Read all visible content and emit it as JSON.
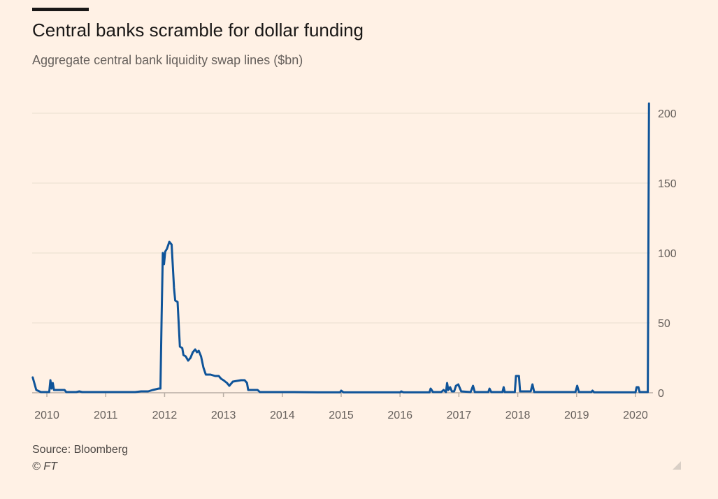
{
  "header": {
    "title": "Central banks scramble for dollar funding",
    "subtitle": "Aggregate central bank liquidity swap lines ($bn)"
  },
  "footer": {
    "source": "Source: Bloomberg",
    "credit": "© FT"
  },
  "colors": {
    "background": "#fff1e5",
    "line": "#0f5499",
    "grid": "#e9decf",
    "text": "#66605c"
  },
  "chart_data": {
    "type": "line",
    "title": "Central banks scramble for dollar funding",
    "subtitle": "Aggregate central bank liquidity swap lines ($bn)",
    "xlabel": "",
    "ylabel": "$bn",
    "xlim": [
      2009.75,
      2020.25
    ],
    "ylim": [
      0,
      200
    ],
    "yticks": [
      0,
      50,
      100,
      150,
      200
    ],
    "xticks": [
      2010,
      2011,
      2012,
      2013,
      2014,
      2015,
      2016,
      2017,
      2018,
      2019,
      2020
    ],
    "y_axis_side": "right",
    "grid": true,
    "series": [
      {
        "name": "Liquidity swap lines",
        "points": [
          [
            2009.76,
            11
          ],
          [
            2009.82,
            2
          ],
          [
            2009.9,
            0.5
          ],
          [
            2010.0,
            0.5
          ],
          [
            2010.04,
            0.5
          ],
          [
            2010.06,
            9
          ],
          [
            2010.08,
            3
          ],
          [
            2010.1,
            7
          ],
          [
            2010.12,
            2
          ],
          [
            2010.3,
            2
          ],
          [
            2010.33,
            0.5
          ],
          [
            2010.5,
            0.5
          ],
          [
            2010.55,
            1
          ],
          [
            2010.6,
            0.5
          ],
          [
            2011.0,
            0.5
          ],
          [
            2011.5,
            0.5
          ],
          [
            2011.6,
            1
          ],
          [
            2011.72,
            1
          ],
          [
            2011.8,
            2
          ],
          [
            2011.9,
            3
          ],
          [
            2011.93,
            3
          ],
          [
            2011.95,
            55
          ],
          [
            2011.97,
            100
          ],
          [
            2011.99,
            92
          ],
          [
            2012.01,
            101
          ],
          [
            2012.04,
            103
          ],
          [
            2012.08,
            108
          ],
          [
            2012.12,
            106
          ],
          [
            2012.16,
            75
          ],
          [
            2012.18,
            66
          ],
          [
            2012.22,
            65
          ],
          [
            2012.26,
            33
          ],
          [
            2012.3,
            32
          ],
          [
            2012.32,
            27
          ],
          [
            2012.36,
            26
          ],
          [
            2012.4,
            23
          ],
          [
            2012.44,
            25
          ],
          [
            2012.48,
            29
          ],
          [
            2012.52,
            31
          ],
          [
            2012.55,
            29
          ],
          [
            2012.58,
            30
          ],
          [
            2012.62,
            26
          ],
          [
            2012.66,
            18
          ],
          [
            2012.7,
            13
          ],
          [
            2012.78,
            13
          ],
          [
            2012.86,
            12
          ],
          [
            2012.92,
            12
          ],
          [
            2012.96,
            10
          ],
          [
            2013.0,
            9
          ],
          [
            2013.06,
            7
          ],
          [
            2013.1,
            5
          ],
          [
            2013.16,
            8
          ],
          [
            2013.3,
            9
          ],
          [
            2013.36,
            9
          ],
          [
            2013.4,
            7
          ],
          [
            2013.42,
            2
          ],
          [
            2013.58,
            2
          ],
          [
            2013.62,
            0.5
          ],
          [
            2014.2,
            0.5
          ],
          [
            2014.6,
            0.3
          ],
          [
            2014.98,
            0.3
          ],
          [
            2015.0,
            1.5
          ],
          [
            2015.04,
            0.3
          ],
          [
            2015.5,
            0.3
          ],
          [
            2016.0,
            0.3
          ],
          [
            2016.02,
            1
          ],
          [
            2016.06,
            0.3
          ],
          [
            2016.5,
            0.3
          ],
          [
            2016.52,
            3
          ],
          [
            2016.56,
            0.5
          ],
          [
            2016.7,
            0.5
          ],
          [
            2016.74,
            2
          ],
          [
            2016.78,
            0.5
          ],
          [
            2016.8,
            7
          ],
          [
            2016.82,
            2
          ],
          [
            2016.85,
            4
          ],
          [
            2016.88,
            1
          ],
          [
            2016.92,
            1
          ],
          [
            2016.95,
            5
          ],
          [
            2016.99,
            6
          ],
          [
            2017.04,
            1
          ],
          [
            2017.2,
            0.5
          ],
          [
            2017.24,
            5
          ],
          [
            2017.27,
            0.5
          ],
          [
            2017.5,
            0.5
          ],
          [
            2017.52,
            3
          ],
          [
            2017.55,
            0.5
          ],
          [
            2017.74,
            0.5
          ],
          [
            2017.76,
            4
          ],
          [
            2017.78,
            0.5
          ],
          [
            2017.95,
            0.5
          ],
          [
            2017.97,
            12
          ],
          [
            2018.02,
            12
          ],
          [
            2018.04,
            1
          ],
          [
            2018.22,
            1
          ],
          [
            2018.25,
            6
          ],
          [
            2018.28,
            0.5
          ],
          [
            2018.5,
            0.5
          ],
          [
            2018.98,
            0.5
          ],
          [
            2019.01,
            5
          ],
          [
            2019.04,
            0.5
          ],
          [
            2019.25,
            0.5
          ],
          [
            2019.27,
            1.5
          ],
          [
            2019.3,
            0.3
          ],
          [
            2019.9,
            0.3
          ],
          [
            2020.0,
            0.3
          ],
          [
            2020.02,
            4
          ],
          [
            2020.05,
            4
          ],
          [
            2020.07,
            0.5
          ],
          [
            2020.21,
            0.5
          ],
          [
            2020.23,
            207
          ]
        ]
      }
    ]
  }
}
